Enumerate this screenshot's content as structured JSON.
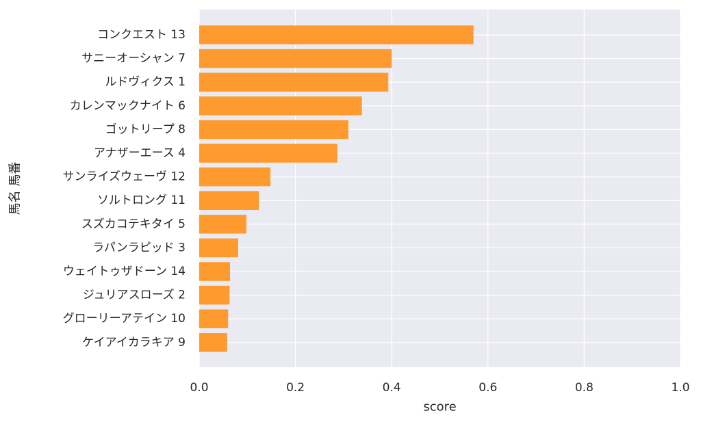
{
  "chart_data": {
    "type": "bar",
    "orientation": "horizontal",
    "categories": [
      "コンクエスト 13",
      "サニーオーシャン 7",
      "ルドヴィクス 1",
      "カレンマックナイト 6",
      "ゴットリープ 8",
      "アナザーエース 4",
      "サンライズウェーヴ 12",
      "ソルトロング 11",
      "スズカコテキタイ 5",
      "ラパンラピッド 3",
      "ウェイトゥザドーン 14",
      "ジュリアスローズ 2",
      "グローリーアテイン 10",
      "ケイアイカラキア 9"
    ],
    "values": [
      0.57,
      0.4,
      0.393,
      0.338,
      0.31,
      0.287,
      0.148,
      0.124,
      0.098,
      0.081,
      0.064,
      0.063,
      0.06,
      0.058
    ],
    "xlabel": "score",
    "ylabel": "馬名 馬番",
    "xlim": [
      0,
      1.0
    ],
    "xticks": [
      "0.0",
      "0.2",
      "0.4",
      "0.6",
      "0.8",
      "1.0"
    ],
    "grid": true,
    "colors": {
      "bar": "#ff9a2e",
      "plot_background": "#eaeaf2",
      "grid": "#ffffff"
    }
  }
}
